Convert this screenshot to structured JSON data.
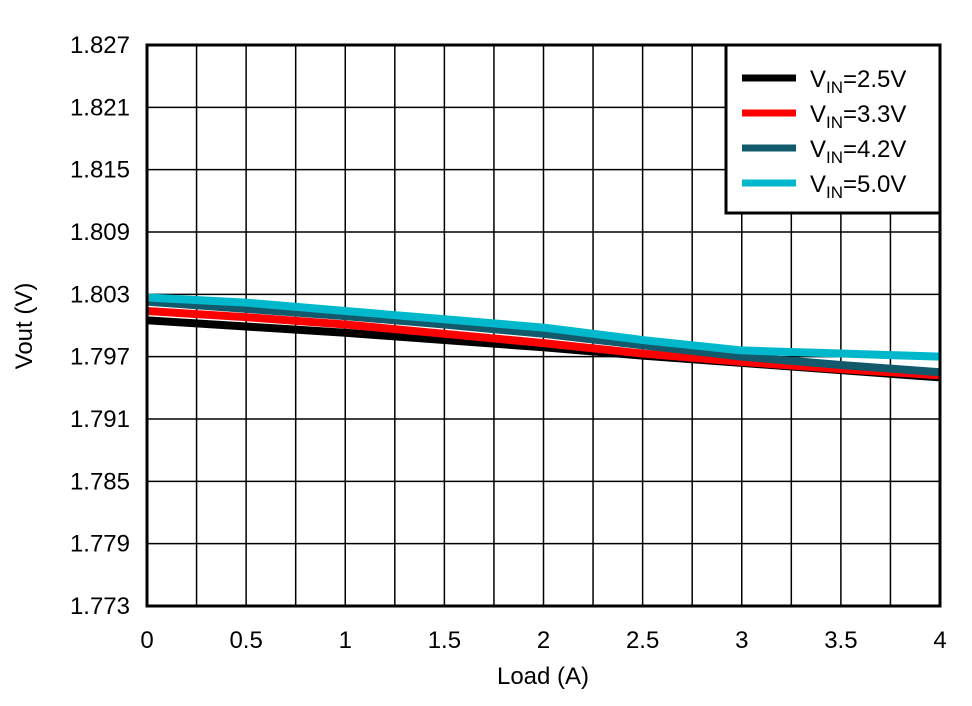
{
  "chart_data": {
    "type": "line",
    "title": "",
    "xlabel": "Load (A)",
    "ylabel": "Vout (V)",
    "xlim": [
      0,
      4
    ],
    "ylim": [
      1.773,
      1.827
    ],
    "xticks": [
      "0",
      "0.5",
      "1",
      "1.5",
      "2",
      "2.5",
      "3",
      "3.5",
      "4"
    ],
    "yticks": [
      "1.773",
      "1.779",
      "1.785",
      "1.791",
      "1.797",
      "1.803",
      "1.809",
      "1.815",
      "1.821",
      "1.827"
    ],
    "grid": true,
    "legend_position": "top-right",
    "x": [
      0,
      0.5,
      1,
      1.5,
      2,
      2.5,
      3,
      3.5,
      4
    ],
    "series": [
      {
        "name_main": "V",
        "name_sub": "IN",
        "name_rest": "=2.5V",
        "color": "#000000",
        "values": [
          1.8005,
          1.7999,
          1.7993,
          1.7986,
          1.7979,
          1.7971,
          1.7964,
          1.7957,
          1.795
        ]
      },
      {
        "name_main": "V",
        "name_sub": "IN",
        "name_rest": "=3.3V",
        "color": "#ff0000",
        "values": [
          1.8014,
          1.8008,
          1.8001,
          1.7992,
          1.7983,
          1.7973,
          1.7965,
          1.7958,
          1.7952
        ]
      },
      {
        "name_main": "V",
        "name_sub": "IN",
        "name_rest": "=4.2V",
        "color": "#12596b",
        "values": [
          1.8023,
          1.8016,
          1.8009,
          1.8001,
          1.7992,
          1.7981,
          1.797,
          1.7962,
          1.7955
        ]
      },
      {
        "name_main": "V",
        "name_sub": "IN",
        "name_rest": "=5.0V",
        "color": "#00b8cc",
        "values": [
          1.8027,
          1.8022,
          1.8014,
          1.8006,
          1.7998,
          1.7986,
          1.7976,
          1.7973,
          1.797
        ]
      }
    ]
  }
}
